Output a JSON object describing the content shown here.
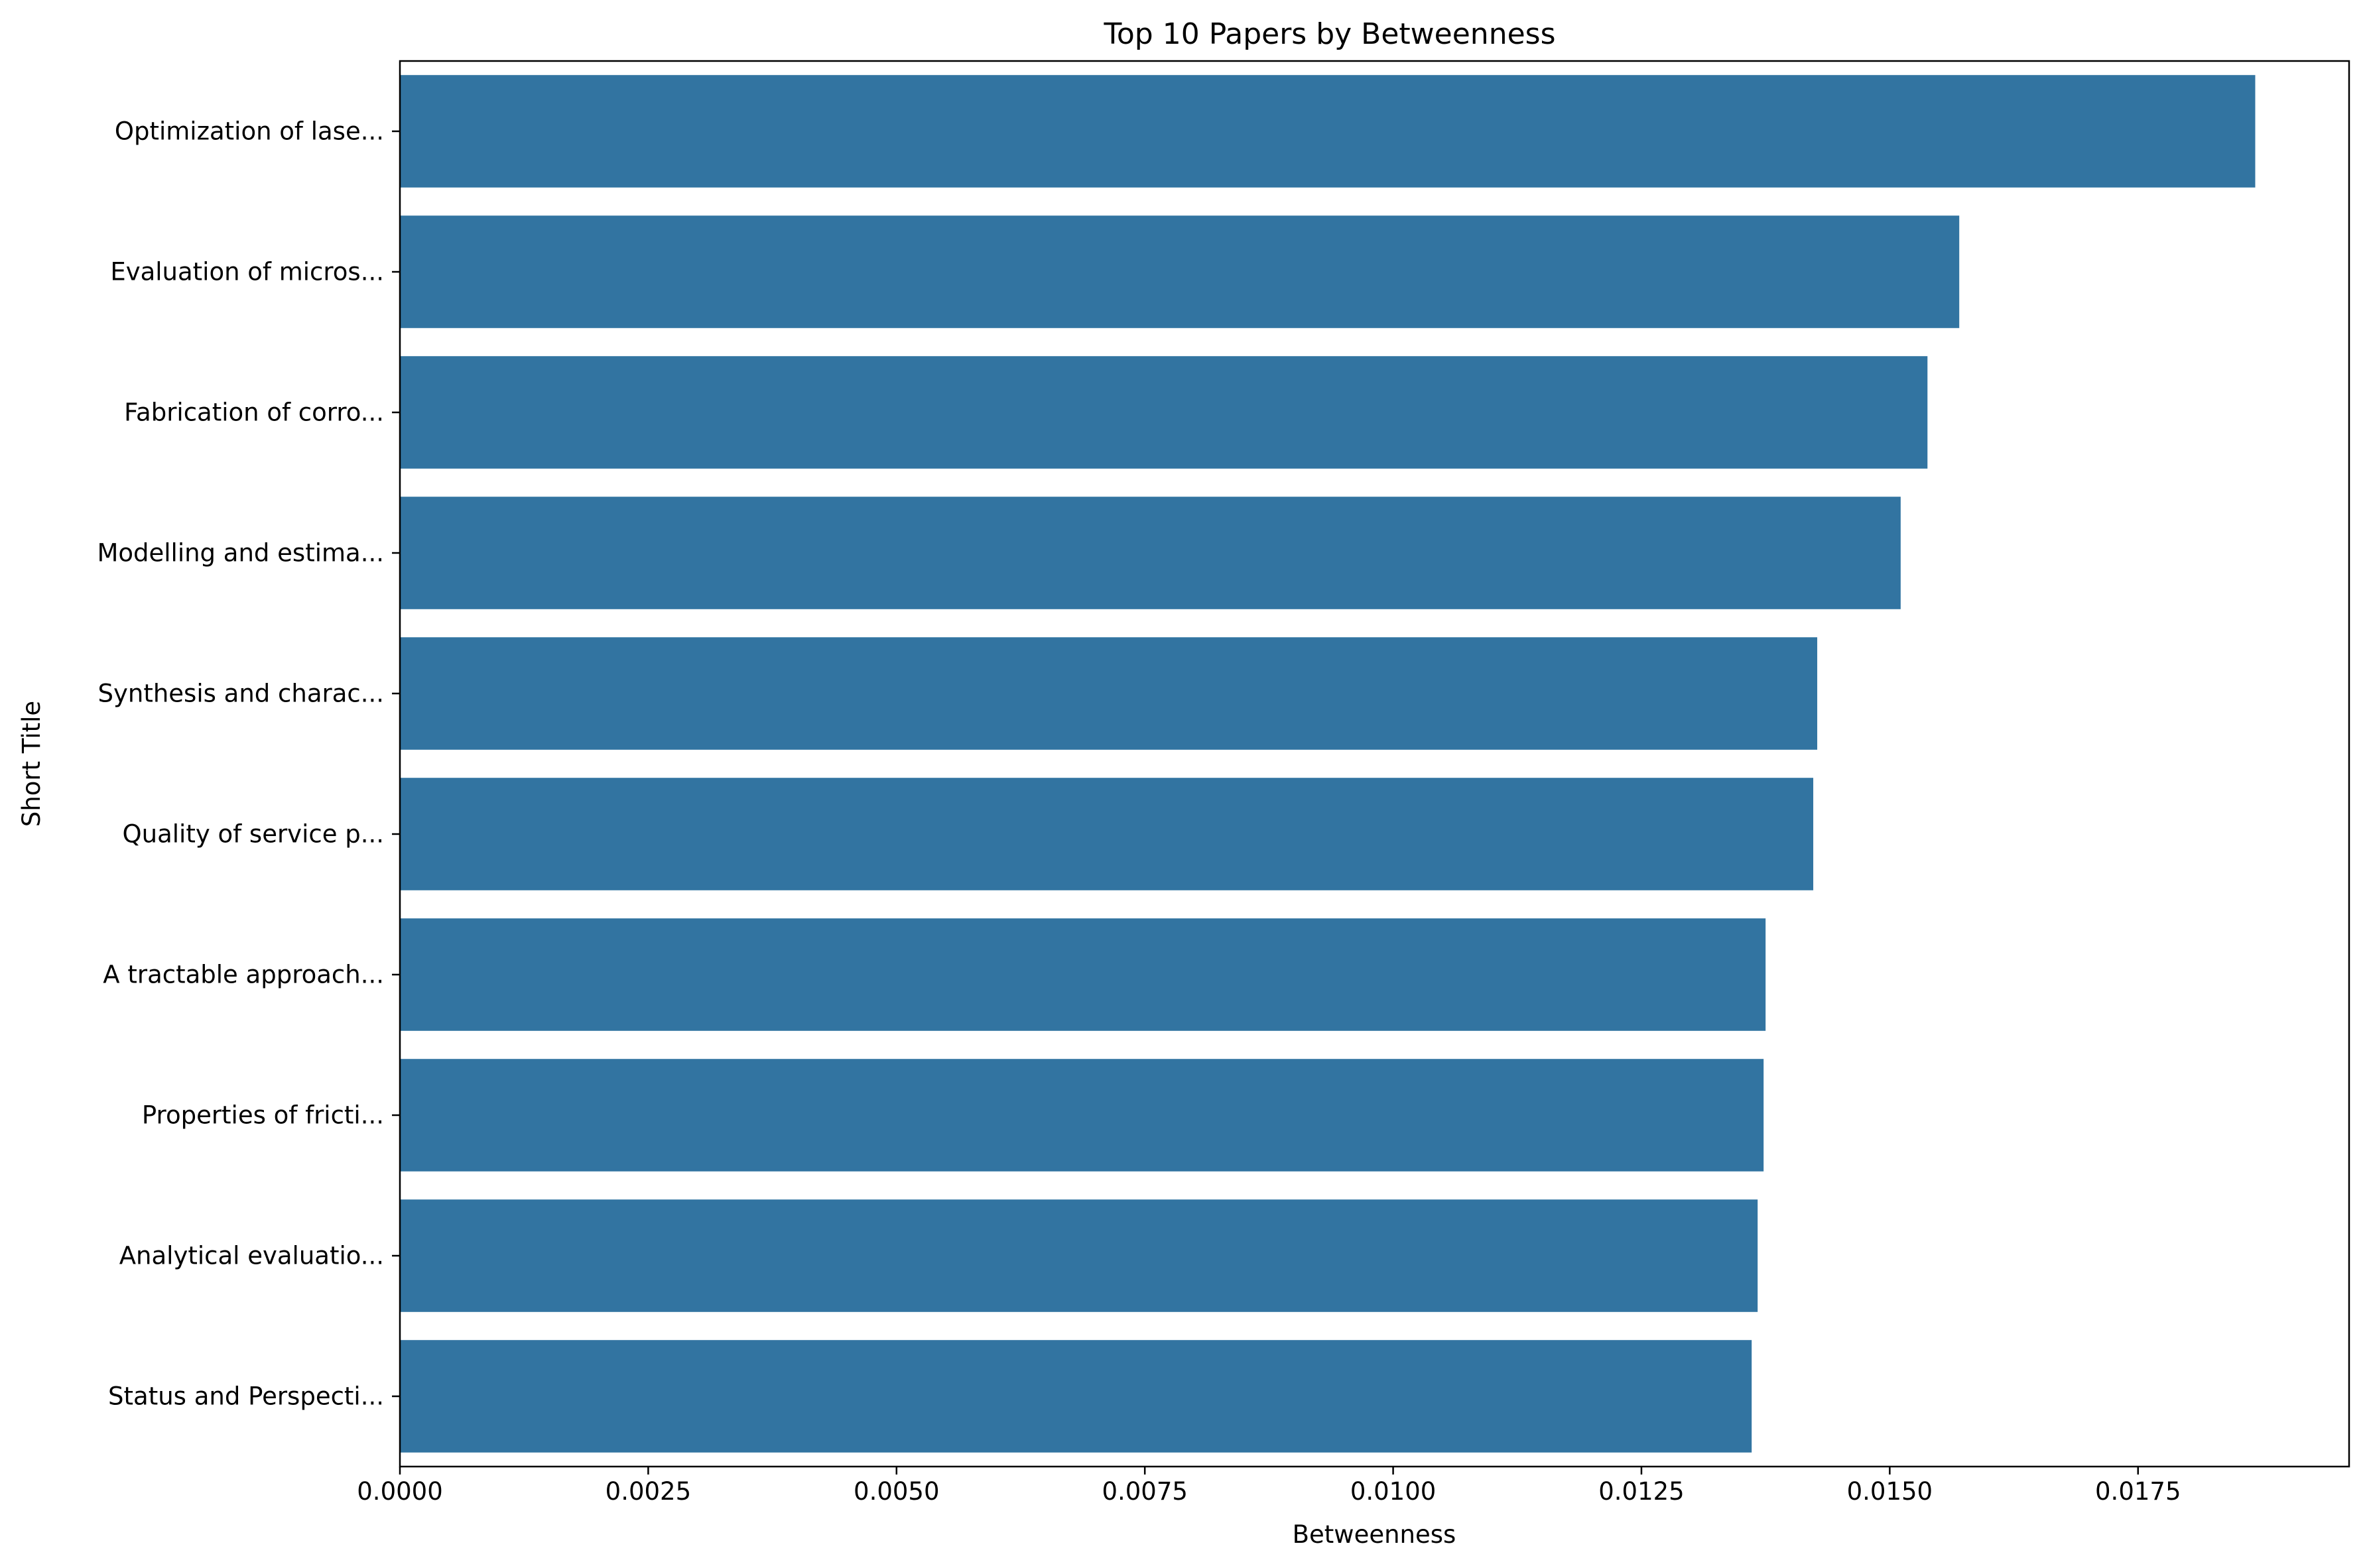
{
  "chart_data": {
    "type": "bar",
    "orientation": "horizontal",
    "title": "Top 10 Papers by Betweenness",
    "xlabel": "Betweenness",
    "ylabel": "Short Title",
    "categories": [
      "Optimization of lase...",
      "Evaluation of micros...",
      "Fabrication of corro...",
      "Modelling and estima...",
      "Synthesis and charac...",
      "Quality of service p...",
      "A tractable approach...",
      "Properties of fricti...",
      "Analytical evaluatio...",
      "Status and Perspecti..."
    ],
    "values": [
      0.01868,
      0.0157,
      0.01538,
      0.01511,
      0.01427,
      0.01423,
      0.01375,
      0.01373,
      0.01367,
      0.01361
    ],
    "xlim": [
      0,
      0.019625
    ],
    "xticks": [
      "0.0000",
      "0.0025",
      "0.0050",
      "0.0075",
      "0.0100",
      "0.0125",
      "0.0150",
      "0.0175"
    ],
    "bar_color": "#3274a1",
    "grid": false
  }
}
